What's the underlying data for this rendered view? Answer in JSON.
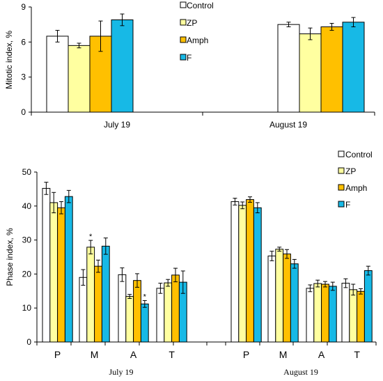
{
  "chart_data": [
    {
      "type": "bar",
      "ylabel": "Mitotic index, %",
      "ylim": [
        0,
        9
      ],
      "yticks": [
        0,
        3,
        6,
        9
      ],
      "groups": [
        "July 19",
        "August 19"
      ],
      "legend_position": "top-center",
      "series": [
        {
          "name": "Control",
          "color": "#ffffff",
          "values": [
            6.5,
            7.5
          ],
          "errors": [
            0.5,
            0.2
          ]
        },
        {
          "name": "ZP",
          "color": "#ffffa0",
          "values": [
            5.7,
            6.7
          ],
          "errors": [
            0.2,
            0.5
          ]
        },
        {
          "name": "Amph",
          "color": "#ffc000",
          "values": [
            6.5,
            7.3
          ],
          "errors": [
            1.3,
            0.3
          ]
        },
        {
          "name": "F",
          "color": "#17b9e6",
          "values": [
            7.9,
            7.7
          ],
          "errors": [
            0.5,
            0.4
          ]
        }
      ]
    },
    {
      "type": "bar",
      "ylabel": "Phase index, %",
      "ylim": [
        0,
        50
      ],
      "yticks": [
        0,
        10,
        20,
        30,
        40,
        50
      ],
      "categories": [
        "P",
        "M",
        "A",
        "T",
        "P",
        "M",
        "A",
        "T"
      ],
      "groups": [
        "July 19",
        "August 19"
      ],
      "legend_position": "top-right",
      "series": [
        {
          "name": "Control",
          "color": "#ffffff",
          "values": [
            45.2,
            19.0,
            19.8,
            15.8,
            41.3,
            25.3,
            15.8,
            17.3
          ],
          "errors": [
            1.8,
            2.3,
            2.0,
            1.5,
            1.0,
            1.4,
            1.0,
            1.3
          ]
        },
        {
          "name": "ZP",
          "color": "#ffffa0",
          "values": [
            41.0,
            27.9,
            13.4,
            17.4,
            40.2,
            27.3,
            17.2,
            15.4
          ],
          "errors": [
            3.0,
            2.0,
            0.6,
            1.0,
            1.0,
            0.6,
            1.0,
            1.6
          ]
        },
        {
          "name": "Amph",
          "color": "#ffc000",
          "values": [
            39.5,
            22.3,
            18.1,
            19.7,
            41.9,
            25.9,
            17.0,
            14.9
          ],
          "errors": [
            1.8,
            1.8,
            2.0,
            2.0,
            0.8,
            1.3,
            0.8,
            0.8
          ]
        },
        {
          "name": "F",
          "color": "#17b9e6",
          "values": [
            42.8,
            28.2,
            11.2,
            17.6,
            39.5,
            23.0,
            16.4,
            21.0
          ],
          "errors": [
            1.8,
            2.4,
            1.0,
            3.3,
            1.5,
            1.3,
            1.2,
            1.3
          ]
        }
      ],
      "annotations": [
        {
          "text": "*",
          "category_index": 1,
          "series": "ZP"
        },
        {
          "text": "*",
          "category_index": 2,
          "series": "F"
        }
      ]
    }
  ]
}
